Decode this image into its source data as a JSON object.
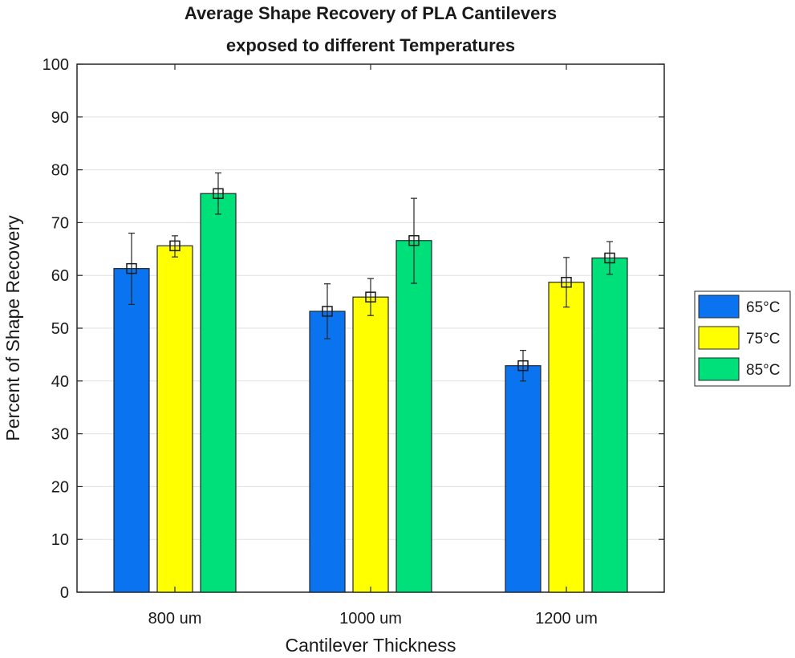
{
  "chart_data": {
    "type": "bar",
    "title": [
      "Average Shape Recovery of PLA Cantilevers",
      "exposed to different Temperatures"
    ],
    "xlabel": "Cantilever Thickness",
    "ylabel": "Percent of Shape Recovery",
    "ylim": [
      0,
      100
    ],
    "yticks": [
      0,
      10,
      20,
      30,
      40,
      50,
      60,
      70,
      80,
      90,
      100
    ],
    "categories": [
      "800 um",
      "1000 um",
      "1200 um"
    ],
    "grid": true,
    "legend_position": "right",
    "series": [
      {
        "name": "65°C",
        "color": "#0a73f0",
        "values": [
          61.3,
          53.2,
          42.9
        ],
        "error_low": [
          54.5,
          48.0,
          40.0
        ],
        "error_high": [
          68.0,
          58.4,
          45.8
        ]
      },
      {
        "name": "75°C",
        "color": "#ffff00",
        "values": [
          65.6,
          55.9,
          58.7
        ],
        "error_low": [
          63.5,
          52.4,
          54.0
        ],
        "error_high": [
          67.5,
          59.4,
          63.4
        ]
      },
      {
        "name": "85°C",
        "color": "#00e07a",
        "values": [
          75.5,
          66.6,
          63.3
        ],
        "error_low": [
          71.6,
          58.5,
          60.2
        ],
        "error_high": [
          79.4,
          74.6,
          66.4
        ]
      }
    ]
  }
}
